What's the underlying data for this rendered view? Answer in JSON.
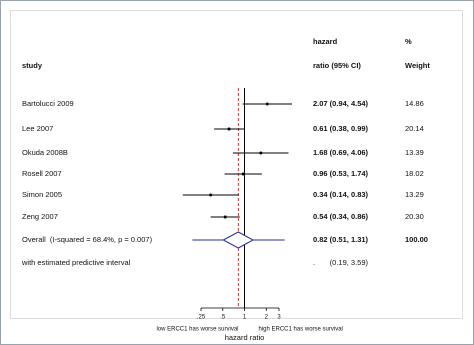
{
  "chart_data": {
    "type": "forest",
    "columns": {
      "study": "study",
      "effect_top": "hazard",
      "effect_bottom": "ratio (95% CI)",
      "weight_top": "%",
      "weight_bottom": "Weight"
    },
    "studies": [
      "Bartolucci 2009",
      "Lee 2007",
      "Okuda 2008B",
      "Rosell 2007",
      "Simon 2005",
      "Zeng 2007"
    ],
    "values": [
      2.07,
      0.61,
      1.68,
      0.96,
      0.34,
      0.54
    ],
    "lower": [
      0.94,
      0.38,
      0.69,
      0.53,
      0.14,
      0.34
    ],
    "upper": [
      4.54,
      0.99,
      4.06,
      1.74,
      0.83,
      0.86
    ],
    "value_labels": [
      "2.07 (0.94, 4.54)",
      "0.61 (0.38, 0.99)",
      "1.68 (0.69, 4.06)",
      "0.96 (0.53, 1.74)",
      "0.34 (0.14, 0.83)",
      "0.54 (0.34, 0.86)"
    ],
    "weights": [
      14.86,
      20.14,
      13.39,
      18.02,
      13.29,
      20.3
    ],
    "weight_labels": [
      "14.86",
      "20.14",
      "13.39",
      "18.02",
      "13.29",
      "20.30"
    ],
    "overall": {
      "name": "Overall  (I-squared = 68.4%, p = 0.007)",
      "value": 0.82,
      "lower": 0.51,
      "upper": 1.31,
      "value_label": "0.82 (0.51, 1.31)",
      "weight": 100,
      "weight_label": "100.00",
      "color": "#2b2ba0"
    },
    "predictive": {
      "name": "with estimated predictive interval",
      "lower": 0.19,
      "upper": 3.59,
      "value_label": ".       (0.19, 3.59)"
    },
    "xscale": "log",
    "xlim": [
      0.25,
      3
    ],
    "xticks": [
      {
        "value": 0.25,
        "label": ".25"
      },
      {
        "value": 0.5,
        "label": ".5"
      },
      1,
      2,
      3
    ],
    "xlabel": "hazard ratio",
    "left_note": "low ERCC1 has worse survival",
    "right_note": "high ERCC1 has worse survival",
    "null_line": 1,
    "overall_line_color": "#c00000"
  }
}
